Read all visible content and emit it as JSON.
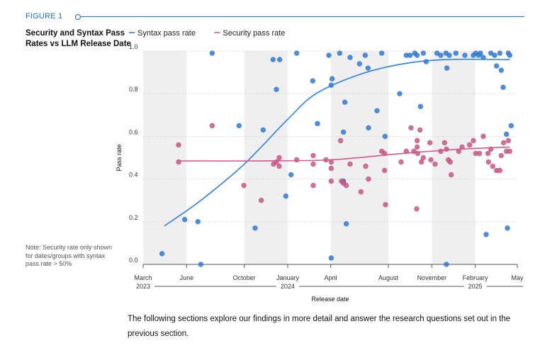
{
  "header": {
    "figure_label": "FIGURE 1"
  },
  "chart_title": "Security and Syntax Pass Rates vs LLM Release Date",
  "note": "Note: Security rate only shown for dates/groups with syntax pass rate > 50%",
  "footer_text": "The following sections explore our findings in more detail and answer the research questions set out in the previous section.",
  "colors": {
    "accent": "#1f6fd1",
    "syntax": "#2f7fe0",
    "security": "#d4578a",
    "band": "#efefef"
  },
  "chart_data": {
    "type": "scatter",
    "title": "Security and Syntax Pass Rates vs LLM Release Date",
    "xlabel": "Release date",
    "ylabel": "Pass rate",
    "ylim": [
      0,
      1
    ],
    "xlim": [
      "2023-03-01",
      "2025-05-01"
    ],
    "grid": true,
    "legend_position": "top",
    "y_ticks": [
      "0.0",
      "0.2",
      "0.4",
      "0.6",
      "0.8",
      "1.0"
    ],
    "x_ticks": [
      {
        "date": "2023-03-01",
        "label": "March"
      },
      {
        "date": "2023-06-01",
        "label": "June"
      },
      {
        "date": "2023-10-01",
        "label": "October"
      },
      {
        "date": "2024-01-01",
        "label": "January"
      },
      {
        "date": "2024-04-01",
        "label": "April"
      },
      {
        "date": "2024-08-01",
        "label": "August"
      },
      {
        "date": "2024-11-01",
        "label": "November"
      },
      {
        "date": "2025-02-01",
        "label": "February"
      },
      {
        "date": "2025-05-01",
        "label": "May"
      }
    ],
    "year_labels": [
      {
        "date": "2023-03-01",
        "label": "2023"
      },
      {
        "date": "2024-01-01",
        "label": "2024"
      },
      {
        "date": "2025-02-01",
        "label": "2025"
      }
    ],
    "shaded_periods": [
      [
        "2023-03-01",
        "2023-06-01"
      ],
      [
        "2023-10-01",
        "2024-01-01"
      ],
      [
        "2024-04-01",
        "2024-08-01"
      ],
      [
        "2024-11-01",
        "2025-02-01"
      ]
    ],
    "series": [
      {
        "name": "Syntax pass rate",
        "color": "#2f7fe0",
        "points": [
          [
            "2023-04-10",
            0.05
          ],
          [
            "2023-05-28",
            0.21
          ],
          [
            "2023-06-25",
            0.2
          ],
          [
            "2023-07-01",
            0.0
          ],
          [
            "2023-07-25",
            0.99
          ],
          [
            "2023-09-20",
            0.65
          ],
          [
            "2023-10-24",
            0.17
          ],
          [
            "2023-11-10",
            0.63
          ],
          [
            "2023-12-01",
            0.96
          ],
          [
            "2023-12-08",
            0.82
          ],
          [
            "2023-12-15",
            0.96
          ],
          [
            "2023-12-28",
            0.32
          ],
          [
            "2024-01-08",
            0.42
          ],
          [
            "2024-01-20",
            0.99
          ],
          [
            "2024-02-23",
            0.86
          ],
          [
            "2024-03-04",
            0.66
          ],
          [
            "2024-03-28",
            0.98
          ],
          [
            "2024-04-02",
            0.84
          ],
          [
            "2024-04-04",
            0.87
          ],
          [
            "2024-04-02",
            0.03
          ],
          [
            "2024-04-20",
            0.99
          ],
          [
            "2024-04-28",
            0.62
          ],
          [
            "2024-04-28",
            0.39
          ],
          [
            "2024-05-01",
            0.76
          ],
          [
            "2024-05-04",
            0.19
          ],
          [
            "2024-05-12",
            0.97
          ],
          [
            "2024-06-01",
            0.94
          ],
          [
            "2024-06-13",
            0.98
          ],
          [
            "2024-06-19",
            0.92
          ],
          [
            "2024-06-20",
            0.64
          ],
          [
            "2024-07-08",
            0.72
          ],
          [
            "2024-07-18",
            0.99
          ],
          [
            "2024-07-25",
            0.6
          ],
          [
            "2024-08-25",
            0.8
          ],
          [
            "2024-09-08",
            0.98
          ],
          [
            "2024-09-16",
            0.98
          ],
          [
            "2024-09-26",
            0.99
          ],
          [
            "2024-10-01",
            0.98
          ],
          [
            "2024-10-08",
            0.74
          ],
          [
            "2024-10-14",
            0.99
          ],
          [
            "2024-10-20",
            0.95
          ],
          [
            "2024-11-12",
            0.99
          ],
          [
            "2024-11-20",
            0.98
          ],
          [
            "2024-12-01",
            0.99
          ],
          [
            "2024-12-08",
            0.98
          ],
          [
            "2024-12-03",
            0.92
          ],
          [
            "2024-12-22",
            0.99
          ],
          [
            "2024-12-02",
            0.0
          ],
          [
            "2025-01-10",
            0.98
          ],
          [
            "2025-01-28",
            0.98
          ],
          [
            "2025-02-02",
            0.99
          ],
          [
            "2025-02-08",
            0.98
          ],
          [
            "2025-02-12",
            0.99
          ],
          [
            "2025-02-18",
            0.97
          ],
          [
            "2025-02-24",
            0.14
          ],
          [
            "2025-03-06",
            0.99
          ],
          [
            "2025-03-14",
            0.98
          ],
          [
            "2025-03-18",
            0.93
          ],
          [
            "2025-03-25",
            0.99
          ],
          [
            "2025-03-28",
            0.91
          ],
          [
            "2025-04-01",
            0.83
          ],
          [
            "2025-04-08",
            0.61
          ],
          [
            "2025-04-10",
            0.17
          ],
          [
            "2025-04-12",
            0.99
          ],
          [
            "2025-04-15",
            0.98
          ],
          [
            "2025-04-18",
            0.65
          ]
        ],
        "trend": [
          [
            "2023-04-15",
            0.18
          ],
          [
            "2023-07-01",
            0.3
          ],
          [
            "2023-10-01",
            0.47
          ],
          [
            "2024-01-01",
            0.68
          ],
          [
            "2024-03-01",
            0.8
          ],
          [
            "2024-06-01",
            0.89
          ],
          [
            "2024-09-01",
            0.94
          ],
          [
            "2024-12-01",
            0.96
          ],
          [
            "2025-04-15",
            0.96
          ]
        ]
      },
      {
        "name": "Security pass rate",
        "color": "#d4578a",
        "points": [
          [
            "2023-05-15",
            0.56
          ],
          [
            "2023-05-15",
            0.48
          ],
          [
            "2023-07-25",
            0.65
          ],
          [
            "2023-09-30",
            0.37
          ],
          [
            "2023-11-06",
            0.3
          ],
          [
            "2023-12-02",
            0.47
          ],
          [
            "2023-12-08",
            0.48
          ],
          [
            "2023-12-14",
            0.5
          ],
          [
            "2023-12-14",
            0.46
          ],
          [
            "2024-01-20",
            0.49
          ],
          [
            "2024-02-24",
            0.51
          ],
          [
            "2024-02-24",
            0.47
          ],
          [
            "2024-02-24",
            0.37
          ],
          [
            "2024-03-22",
            0.49
          ],
          [
            "2024-04-02",
            0.48
          ],
          [
            "2024-04-02",
            0.45
          ],
          [
            "2024-04-02",
            0.39
          ],
          [
            "2024-04-22",
            0.58
          ],
          [
            "2024-04-24",
            0.39
          ],
          [
            "2024-04-28",
            0.38
          ],
          [
            "2024-05-04",
            0.37
          ],
          [
            "2024-05-12",
            0.47
          ],
          [
            "2024-06-04",
            0.34
          ],
          [
            "2024-06-14",
            0.46
          ],
          [
            "2024-06-20",
            0.4
          ],
          [
            "2024-07-18",
            0.53
          ],
          [
            "2024-07-24",
            0.52
          ],
          [
            "2024-07-24",
            0.44
          ],
          [
            "2024-07-26",
            0.28
          ],
          [
            "2024-08-28",
            0.48
          ],
          [
            "2024-09-08",
            0.53
          ],
          [
            "2024-09-18",
            0.64
          ],
          [
            "2024-09-24",
            0.53
          ],
          [
            "2024-10-01",
            0.58
          ],
          [
            "2024-10-01",
            0.55
          ],
          [
            "2024-10-02",
            0.52
          ],
          [
            "2024-09-30",
            0.26
          ],
          [
            "2024-10-07",
            0.63
          ],
          [
            "2024-10-10",
            0.48
          ],
          [
            "2024-10-14",
            0.5
          ],
          [
            "2024-10-28",
            0.57
          ],
          [
            "2024-10-30",
            0.49
          ],
          [
            "2024-11-08",
            0.47
          ],
          [
            "2024-11-20",
            0.53
          ],
          [
            "2024-11-28",
            0.57
          ],
          [
            "2024-12-02",
            0.54
          ],
          [
            "2024-12-06",
            0.49
          ],
          [
            "2024-12-10",
            0.48
          ],
          [
            "2024-12-12",
            0.42
          ],
          [
            "2024-12-28",
            0.53
          ],
          [
            "2025-01-04",
            0.55
          ],
          [
            "2025-01-20",
            0.56
          ],
          [
            "2025-01-28",
            0.58
          ],
          [
            "2025-02-02",
            0.52
          ],
          [
            "2025-02-10",
            0.52
          ],
          [
            "2025-02-18",
            0.6
          ],
          [
            "2025-02-28",
            0.52
          ],
          [
            "2025-03-01",
            0.48
          ],
          [
            "2025-03-06",
            0.54
          ],
          [
            "2025-03-10",
            0.46
          ],
          [
            "2025-03-18",
            0.44
          ],
          [
            "2025-03-25",
            0.44
          ],
          [
            "2025-03-28",
            0.51
          ],
          [
            "2025-04-02",
            0.57
          ],
          [
            "2025-04-08",
            0.53
          ],
          [
            "2025-04-12",
            0.58
          ],
          [
            "2025-04-15",
            0.53
          ]
        ],
        "trend": [
          [
            "2023-05-15",
            0.485
          ],
          [
            "2023-11-01",
            0.485
          ],
          [
            "2024-04-01",
            0.49
          ],
          [
            "2024-09-01",
            0.52
          ],
          [
            "2025-01-01",
            0.54
          ],
          [
            "2025-04-15",
            0.55
          ]
        ]
      }
    ]
  }
}
